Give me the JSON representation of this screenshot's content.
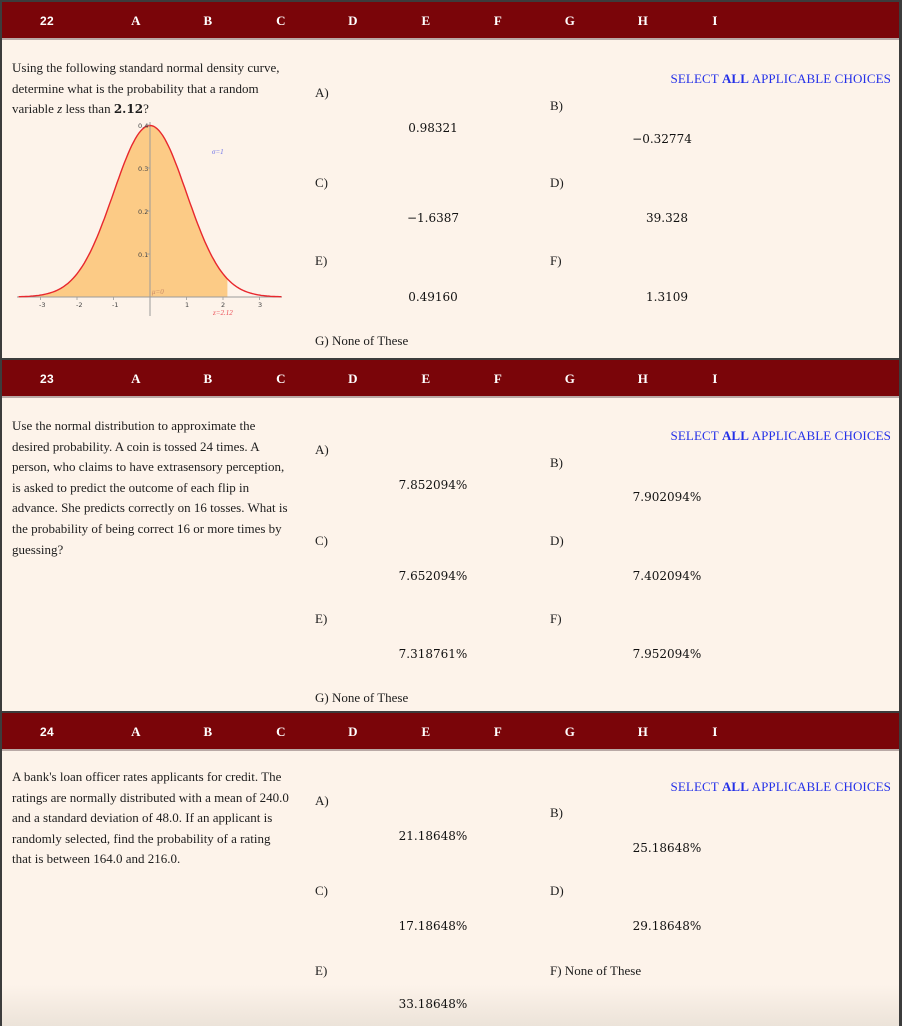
{
  "columns": [
    "A",
    "B",
    "C",
    "D",
    "E",
    "F",
    "G",
    "H",
    "I"
  ],
  "questions": [
    {
      "number": "22",
      "text_parts": {
        "before": "Using the following standard normal density curve, determine what is the probability that a random variable ",
        "var": "z",
        "middle": " less than ",
        "value": "2.12",
        "after": "?"
      },
      "select_all": {
        "pre": "SELECT ",
        "bold": "ALL",
        "post": " APPLICABLE CHOICES"
      },
      "choices": [
        {
          "label": "A)",
          "value": "0.98321"
        },
        {
          "label": "B)",
          "value": "−0.32774"
        },
        {
          "label": "C)",
          "value": "−1.6387"
        },
        {
          "label": "D)",
          "value": "39.328"
        },
        {
          "label": "E)",
          "value": "0.49160"
        },
        {
          "label": "F)",
          "value": "1.3109"
        },
        {
          "label": "G) None of These",
          "value": ""
        }
      ]
    },
    {
      "number": "23",
      "text": "Use the normal distribution to approximate the desired probability. A coin is tossed 24 times. A person, who claims to have extrasensory perception, is asked to predict the outcome of each flip in advance. She predicts correctly on 16 tosses. What is the probability of being correct 16 or more times by guessing?",
      "select_all": {
        "pre": "SELECT ",
        "bold": "ALL",
        "post": " APPLICABLE CHOICES"
      },
      "choices": [
        {
          "label": "A)",
          "value": "7.852094%"
        },
        {
          "label": "B)",
          "value": "7.902094%"
        },
        {
          "label": "C)",
          "value": "7.652094%"
        },
        {
          "label": "D)",
          "value": "7.402094%"
        },
        {
          "label": "E)",
          "value": "7.318761%"
        },
        {
          "label": "F)",
          "value": "7.952094%"
        },
        {
          "label": "G) None of These",
          "value": ""
        }
      ]
    },
    {
      "number": "24",
      "text": "A bank's loan officer rates applicants for credit. The ratings are normally distributed with a mean of 240.0 and a standard deviation of 48.0. If an applicant is randomly selected, find the probability of a rating that is between 164.0 and 216.0.",
      "select_all": {
        "pre": "SELECT ",
        "bold": "ALL",
        "post": " APPLICABLE CHOICES"
      },
      "choices": [
        {
          "label": "A)",
          "value": "21.18648%"
        },
        {
          "label": "B)",
          "value": "25.18648%"
        },
        {
          "label": "C)",
          "value": "17.18648%"
        },
        {
          "label": "D)",
          "value": "29.18648%"
        },
        {
          "label": "E)",
          "value": "33.18648%"
        },
        {
          "label": "F) None of These",
          "value": ""
        }
      ]
    }
  ],
  "normal_curve": {
    "y_ticks": [
      "0.4",
      "0.3",
      "0.2",
      "0.1"
    ],
    "x_ticks": [
      "-3",
      "-2",
      "-1",
      "1",
      "2",
      "3"
    ],
    "sigma_label": "σ=1",
    "mu_label": "μ=0",
    "z_label": "z=2.12",
    "curve_color": "#e8282e",
    "fill_color": "#fccb86",
    "shade_upper_bound": 2.12
  },
  "colors": {
    "header_bg": "#7a0509",
    "body_bg": "#fdf3ea",
    "frame": "#3c3c3c",
    "select_all": "#2430e8"
  }
}
